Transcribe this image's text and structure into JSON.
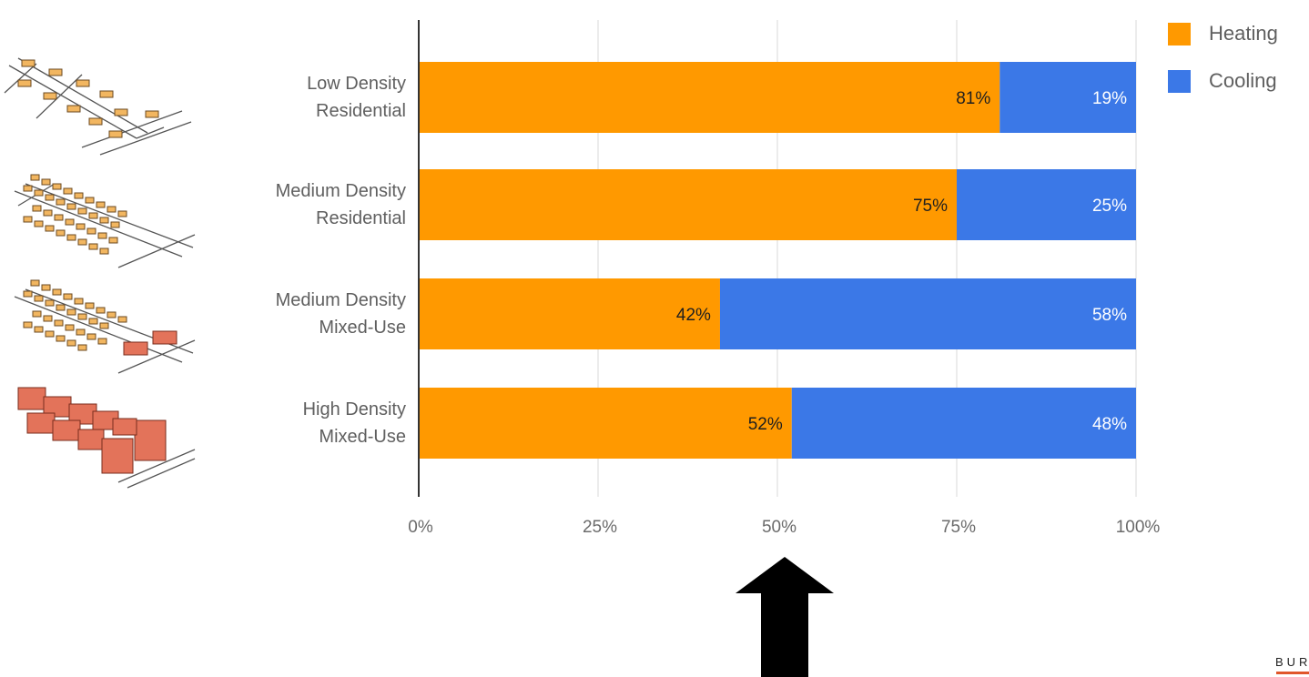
{
  "chart_data": {
    "type": "bar",
    "orientation": "horizontal",
    "stacked": true,
    "categories": [
      [
        "Low Density",
        "Residential"
      ],
      [
        "Medium Density",
        "Residential"
      ],
      [
        "Medium Density",
        "Mixed-Use"
      ],
      [
        "High Density",
        "Mixed-Use"
      ]
    ],
    "series": [
      {
        "name": "Heating",
        "color": "#ff9900",
        "values": [
          81,
          75,
          42,
          52
        ],
        "labels": [
          "81%",
          "75%",
          "42%",
          "52%"
        ]
      },
      {
        "name": "Cooling",
        "color": "#3b78e7",
        "values": [
          19,
          25,
          58,
          48
        ],
        "labels": [
          "19%",
          "25%",
          "58%",
          "48%"
        ]
      }
    ],
    "xlim": [
      0,
      100
    ],
    "x_ticks": [
      0,
      25,
      50,
      75,
      100
    ],
    "x_tick_labels": [
      "0%",
      "25%",
      "50%",
      "75%",
      "100%"
    ],
    "grid": true,
    "legend_position": "top-right"
  },
  "legend": [
    {
      "label": "Heating",
      "color": "#ff9900"
    },
    {
      "label": "Cooling",
      "color": "#3b78e7"
    }
  ],
  "illustrations": [
    {
      "icon": "low-density-residential-icon"
    },
    {
      "icon": "medium-density-residential-icon"
    },
    {
      "icon": "medium-density-mixed-use-icon"
    },
    {
      "icon": "high-density-mixed-use-icon"
    }
  ],
  "annotation": {
    "icon": "up-arrow-icon",
    "points_to": 50
  },
  "brand": {
    "text": "BUR",
    "accent": "#e0562a"
  }
}
